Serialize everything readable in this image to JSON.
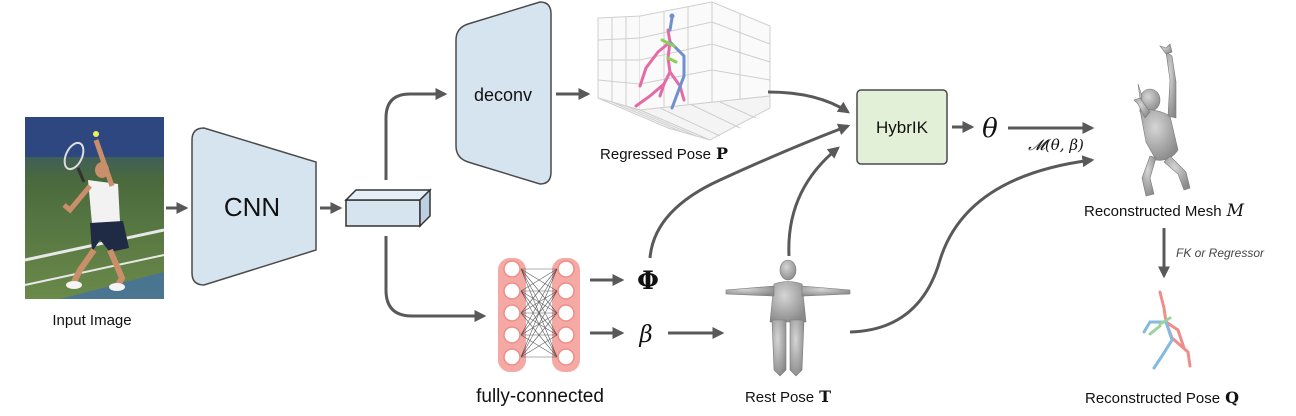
{
  "labels": {
    "input_image": "Input Image",
    "cnn": "CNN",
    "deconv": "deconv",
    "regressed_pose": "Regressed Pose",
    "regressed_pose_sym": "P",
    "hybrik": "HybrIK",
    "theta": "θ",
    "mapping": "𝓜(θ, β)",
    "reconstructed_mesh": "Reconstructed Mesh",
    "reconstructed_mesh_sym": "M",
    "fk_regressor": "FK or Regressor",
    "phi": "Φ",
    "beta": "β",
    "fully_connected": "fully-connected",
    "rest_pose": "Rest Pose",
    "rest_pose_sym": "T",
    "reconstructed_pose": "Reconstructed Pose",
    "reconstructed_pose_sym": "Q"
  },
  "colors": {
    "block_fill": "#d6e4f0",
    "hybrik_fill": "#e3f0d8",
    "fc_fill": "#f4a9a5",
    "arrow": "#595959",
    "skeleton_pink": "#e56aa6",
    "skeleton_blue": "#6f8fcf",
    "skeleton_green": "#8cd05a",
    "recon_pose_red": "#ef8d8a",
    "recon_pose_blue": "#86b9e0",
    "recon_pose_green": "#9cd39c"
  }
}
